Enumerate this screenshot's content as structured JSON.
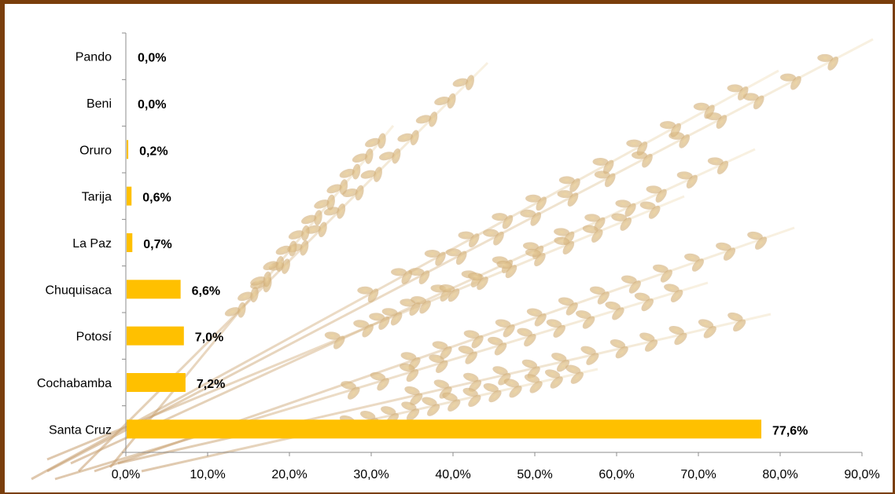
{
  "colors": {
    "bar": "#ffc000",
    "frame": "#7a3e0c",
    "axis": "#8c8c8c"
  },
  "background_image": "wheat-sheaf",
  "chart_data": {
    "type": "bar",
    "orientation": "horizontal",
    "categories": [
      "Pando",
      "Beni",
      "Oruro",
      "Tarija",
      "La Paz",
      "Chuquisaca",
      "Potosí",
      "Cochabamba",
      "Santa Cruz"
    ],
    "values": [
      0.0,
      0.0,
      0.2,
      0.6,
      0.7,
      6.6,
      7.0,
      7.2,
      77.6
    ],
    "value_labels": [
      "0,0%",
      "0,0%",
      "0,2%",
      "0,6%",
      "0,7%",
      "6,6%",
      "7,0%",
      "7,2%",
      "77,6%"
    ],
    "x_ticks": [
      "0,0%",
      "10,0%",
      "20,0%",
      "30,0%",
      "40,0%",
      "50,0%",
      "60,0%",
      "70,0%",
      "80,0%",
      "90,0%"
    ],
    "xlim": [
      0,
      90
    ],
    "grid": false,
    "legend": "none"
  }
}
